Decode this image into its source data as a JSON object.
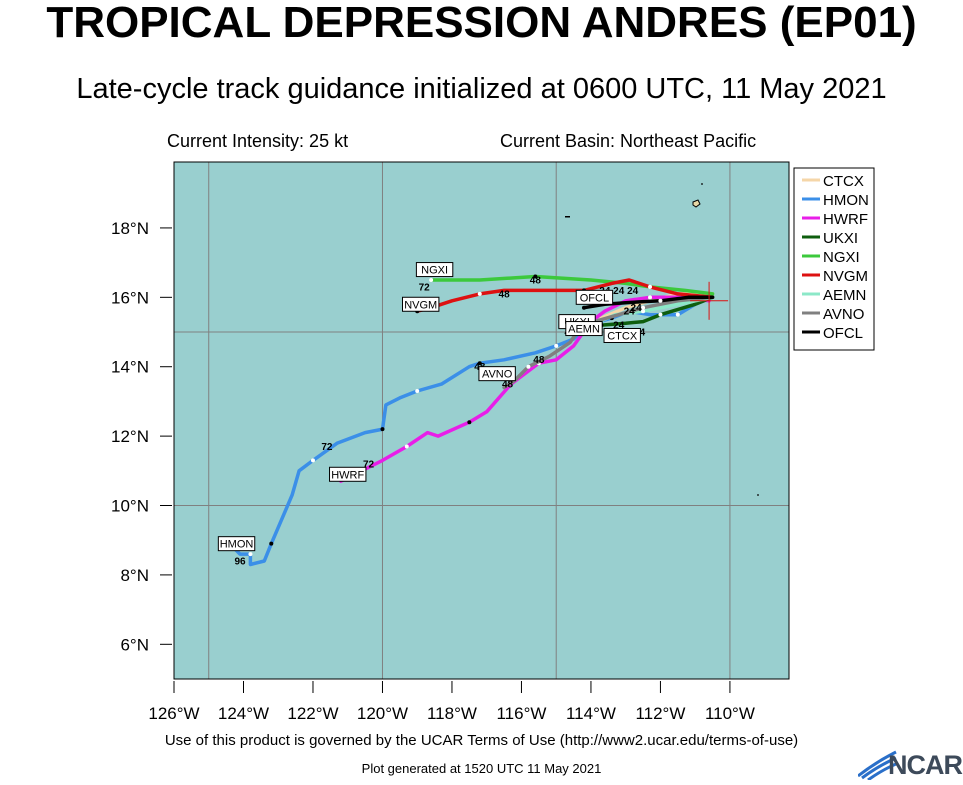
{
  "title": "TROPICAL DEPRESSION ANDRES (EP01)",
  "subtitle": "Late-cycle track guidance initialized at 0600 UTC, 11 May 2021",
  "current_intensity": "Current Intensity: 25 kt",
  "current_basin": "Current Basin: Northeast Pacific",
  "footer": "Use of this product is governed by the UCAR Terms of Use (http://www2.ucar.edu/terms-of-use)",
  "generated": "Plot generated at 1520 UTC   11 May 2021",
  "logo_text": "NCAR",
  "colors": {
    "ocean": "#99cfcf",
    "grid": "#808080",
    "CTCX": "#f5d6a8",
    "HMON": "#3b8fe8",
    "HWRF": "#e81ee8",
    "UKXI": "#0e5e0e",
    "NGXI": "#3cc93c",
    "NVGM": "#dd1111",
    "AEMN": "#8ce8c8",
    "AVNO": "#808080",
    "OFCL": "#000000"
  },
  "chart_data": {
    "type": "line",
    "xlim": [
      -126.0,
      -108.3
    ],
    "ylim": [
      5.0,
      19.9
    ],
    "x_ticks": [
      -126,
      -124,
      -122,
      -120,
      -118,
      -116,
      -114,
      -112,
      -110
    ],
    "x_tick_labels": [
      "126°W",
      "124°W",
      "122°W",
      "120°W",
      "118°W",
      "116°W",
      "114°W",
      "112°W",
      "110°W"
    ],
    "y_ticks": [
      6,
      8,
      10,
      12,
      14,
      16,
      18
    ],
    "y_tick_labels": [
      "6°N",
      "8°N",
      "10°N",
      "12°N",
      "14°N",
      "16°N",
      "18°N"
    ],
    "grid_lines_lon": [
      -125,
      -120,
      -115,
      -110
    ],
    "grid_lines_lat": [
      10,
      15
    ],
    "legend": [
      "CTCX",
      "HMON",
      "HWRF",
      "UKXI",
      "NGXI",
      "NVGM",
      "AEMN",
      "AVNO",
      "OFCL"
    ],
    "legend_position": "right",
    "current_position": {
      "lon": -110.6,
      "lat": 15.9
    },
    "series": [
      {
        "name": "CTCX",
        "points": [
          [
            -110.5,
            16.1
          ],
          [
            -111.5,
            16.1
          ],
          [
            -112.3,
            15.9
          ],
          [
            -113.0,
            15.7
          ],
          [
            -113.7,
            15.4
          ],
          [
            -114.1,
            15.0
          ]
        ]
      },
      {
        "name": "HMON",
        "points": [
          [
            -110.5,
            16.0
          ],
          [
            -111.0,
            15.8
          ],
          [
            -111.5,
            15.5
          ],
          [
            -112.3,
            15.5
          ],
          [
            -112.9,
            15.6
          ],
          [
            -113.4,
            15.4
          ],
          [
            -114.1,
            15.2
          ],
          [
            -114.5,
            14.8
          ],
          [
            -115.0,
            14.6
          ],
          [
            -115.6,
            14.4
          ],
          [
            -116.5,
            14.2
          ],
          [
            -117.2,
            14.1
          ],
          [
            -117.5,
            14.0
          ],
          [
            -118.3,
            13.5
          ],
          [
            -119.0,
            13.3
          ],
          [
            -119.5,
            13.1
          ],
          [
            -119.9,
            12.9
          ],
          [
            -120.0,
            12.2
          ],
          [
            -120.5,
            12.1
          ],
          [
            -121.3,
            11.8
          ],
          [
            -122.0,
            11.3
          ],
          [
            -122.4,
            11.0
          ],
          [
            -122.6,
            10.3
          ],
          [
            -123.2,
            8.9
          ],
          [
            -123.4,
            8.4
          ],
          [
            -123.8,
            8.3
          ],
          [
            -123.8,
            8.6
          ],
          [
            -124.1,
            8.6
          ],
          [
            -124.3,
            8.8
          ]
        ]
      },
      {
        "name": "HWRF",
        "points": [
          [
            -110.6,
            15.9
          ],
          [
            -111.5,
            16.0
          ],
          [
            -112.3,
            16.0
          ],
          [
            -113.0,
            15.9
          ],
          [
            -113.6,
            15.6
          ],
          [
            -114.0,
            15.3
          ],
          [
            -114.5,
            14.6
          ],
          [
            -115.0,
            14.2
          ],
          [
            -115.5,
            14.1
          ],
          [
            -116.3,
            13.5
          ],
          [
            -117.0,
            12.7
          ],
          [
            -117.5,
            12.4
          ],
          [
            -118.4,
            12.0
          ],
          [
            -118.7,
            12.1
          ],
          [
            -119.3,
            11.7
          ],
          [
            -120.0,
            11.3
          ],
          [
            -120.6,
            11.0
          ],
          [
            -121.0,
            10.8
          ],
          [
            -121.2,
            10.7
          ]
        ]
      },
      {
        "name": "UKXI",
        "points": [
          [
            -110.5,
            16.0
          ],
          [
            -111.0,
            15.8
          ],
          [
            -112.0,
            15.5
          ],
          [
            -112.5,
            15.3
          ],
          [
            -113.0,
            15.25
          ],
          [
            -113.7,
            15.2
          ]
        ]
      },
      {
        "name": "NGXI",
        "points": [
          [
            -110.5,
            16.1
          ],
          [
            -111.3,
            16.2
          ],
          [
            -112.3,
            16.3
          ],
          [
            -113.0,
            16.4
          ],
          [
            -114.0,
            16.5
          ],
          [
            -115.6,
            16.6
          ],
          [
            -117.2,
            16.5
          ],
          [
            -118.3,
            16.5
          ],
          [
            -118.6,
            16.5
          ]
        ]
      },
      {
        "name": "NVGM",
        "points": [
          [
            -110.5,
            16.0
          ],
          [
            -111.5,
            16.1
          ],
          [
            -112.3,
            16.3
          ],
          [
            -112.9,
            16.5
          ],
          [
            -113.4,
            16.4
          ],
          [
            -114.2,
            16.2
          ],
          [
            -115.5,
            16.2
          ],
          [
            -116.5,
            16.2
          ],
          [
            -117.2,
            16.1
          ],
          [
            -118.0,
            15.9
          ],
          [
            -118.6,
            15.7
          ],
          [
            -119.0,
            15.6
          ]
        ]
      },
      {
        "name": "AEMN",
        "points": [
          [
            -110.5,
            16.0
          ],
          [
            -111.5,
            15.8
          ],
          [
            -112.5,
            15.6
          ],
          [
            -113.3,
            15.5
          ],
          [
            -114.0,
            15.2
          ],
          [
            -114.4,
            15.0
          ]
        ]
      },
      {
        "name": "AVNO",
        "points": [
          [
            -110.5,
            16.0
          ],
          [
            -111.5,
            15.9
          ],
          [
            -112.5,
            15.7
          ],
          [
            -113.2,
            15.5
          ],
          [
            -113.9,
            15.3
          ],
          [
            -114.4,
            15.0
          ],
          [
            -114.6,
            14.7
          ],
          [
            -115.2,
            14.3
          ],
          [
            -115.8,
            14.0
          ],
          [
            -116.2,
            13.6
          ],
          [
            -116.5,
            13.4
          ]
        ]
      },
      {
        "name": "OFCL",
        "points": [
          [
            -110.5,
            16.0
          ],
          [
            -111.2,
            16.0
          ],
          [
            -112.0,
            15.9
          ],
          [
            -112.9,
            15.85
          ],
          [
            -113.6,
            15.8
          ],
          [
            -114.2,
            15.7
          ]
        ]
      }
    ],
    "model_labels": [
      {
        "text": "NGXI",
        "lon": -118.5,
        "lat": 16.8
      },
      {
        "text": "NVGM",
        "lon": -118.9,
        "lat": 15.8
      },
      {
        "text": "OFCL",
        "lon": -113.9,
        "lat": 16.0
      },
      {
        "text": "UKXI",
        "lon": -114.4,
        "lat": 15.3
      },
      {
        "text": "AEMN",
        "lon": -114.2,
        "lat": 15.1
      },
      {
        "text": "CTCX",
        "lon": -113.1,
        "lat": 14.9
      },
      {
        "text": "AVNO",
        "lon": -116.7,
        "lat": 13.8
      },
      {
        "text": "HWRF",
        "lon": -121.0,
        "lat": 10.9
      },
      {
        "text": "HMON",
        "lon": -124.2,
        "lat": 8.9
      }
    ],
    "hour_labels": [
      {
        "text": "72",
        "lon": -118.8,
        "lat": 16.2
      },
      {
        "text": "48",
        "lon": -115.6,
        "lat": 16.4
      },
      {
        "text": "48",
        "lon": -116.5,
        "lat": 16.0
      },
      {
        "text": "24",
        "lon": -113.6,
        "lat": 16.1
      },
      {
        "text": "24",
        "lon": -113.2,
        "lat": 16.1
      },
      {
        "text": "24",
        "lon": -112.8,
        "lat": 16.1
      },
      {
        "text": "48",
        "lon": -114.6,
        "lat": 14.9
      },
      {
        "text": "24",
        "lon": -112.9,
        "lat": 15.5
      },
      {
        "text": "24",
        "lon": -112.7,
        "lat": 15.6
      },
      {
        "text": "24",
        "lon": -113.2,
        "lat": 15.1
      },
      {
        "text": "24",
        "lon": -112.6,
        "lat": 14.9
      },
      {
        "text": "48",
        "lon": -115.5,
        "lat": 14.1
      },
      {
        "text": "48",
        "lon": -117.2,
        "lat": 13.9
      },
      {
        "text": "48",
        "lon": -116.4,
        "lat": 13.4
      },
      {
        "text": "72",
        "lon": -121.6,
        "lat": 11.6
      },
      {
        "text": "72",
        "lon": -120.4,
        "lat": 11.1
      },
      {
        "text": "96",
        "lon": -124.1,
        "lat": 8.3
      }
    ]
  }
}
